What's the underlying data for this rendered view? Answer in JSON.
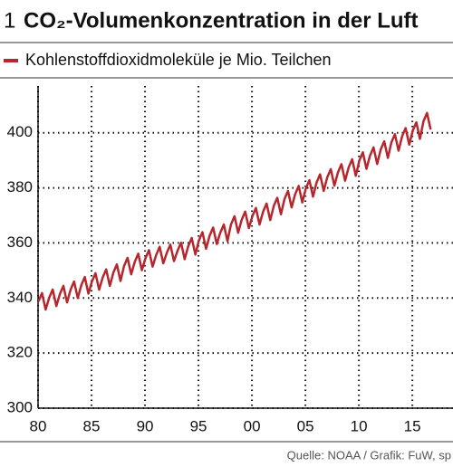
{
  "chart_data": {
    "type": "line",
    "number": "1",
    "title": "CO₂-Volumenkonzentration in der Luft",
    "source": "Quelle: NOAA / Grafik: FuW, sp",
    "x": [
      1980.04,
      1980.37,
      1980.71,
      1981.04,
      1981.37,
      1981.71,
      1982.04,
      1982.37,
      1982.71,
      1983.04,
      1983.37,
      1983.71,
      1984.04,
      1984.37,
      1984.71,
      1985.04,
      1985.37,
      1985.71,
      1986.04,
      1986.37,
      1986.71,
      1987.04,
      1987.37,
      1987.71,
      1988.04,
      1988.37,
      1988.71,
      1989.04,
      1989.37,
      1989.71,
      1990.04,
      1990.37,
      1990.71,
      1991.04,
      1991.37,
      1991.71,
      1992.04,
      1992.37,
      1992.71,
      1993.04,
      1993.37,
      1993.71,
      1994.04,
      1994.37,
      1994.71,
      1995.04,
      1995.37,
      1995.71,
      1996.04,
      1996.37,
      1996.71,
      1997.04,
      1997.37,
      1997.71,
      1998.04,
      1998.37,
      1998.71,
      1999.04,
      1999.37,
      1999.71,
      2000.04,
      2000.37,
      2000.71,
      2001.04,
      2001.37,
      2001.71,
      2002.04,
      2002.37,
      2002.71,
      2003.04,
      2003.37,
      2003.71,
      2004.04,
      2004.37,
      2004.71,
      2005.04,
      2005.37,
      2005.71,
      2006.04,
      2006.37,
      2006.71,
      2007.04,
      2007.37,
      2007.71,
      2008.04,
      2008.37,
      2008.71,
      2009.04,
      2009.37,
      2009.71,
      2010.04,
      2010.37,
      2010.71,
      2011.04,
      2011.37,
      2011.71,
      2012.04,
      2012.37,
      2012.71,
      2013.04,
      2013.37,
      2013.71,
      2014.04,
      2014.37,
      2014.71,
      2015.04,
      2015.37,
      2015.71,
      2016.04,
      2016.37,
      2016.71
    ],
    "series": [
      {
        "name": "Kohlenstoffdioxidmoleküle je Mio. Teilchen",
        "color": "#b5272d",
        "values": [
          338.8,
          341.8,
          335.8,
          340.1,
          343.1,
          337.1,
          341.4,
          344.4,
          338.4,
          343.0,
          346.0,
          340.0,
          344.6,
          347.6,
          341.6,
          346.0,
          349.0,
          343.0,
          347.4,
          350.4,
          344.4,
          349.2,
          352.2,
          346.2,
          351.6,
          354.6,
          348.6,
          353.1,
          356.1,
          350.1,
          354.4,
          357.4,
          351.4,
          355.6,
          358.6,
          352.6,
          356.4,
          359.4,
          353.4,
          357.1,
          360.1,
          354.1,
          358.8,
          361.8,
          355.8,
          360.9,
          363.9,
          357.9,
          362.6,
          365.6,
          359.6,
          363.7,
          366.7,
          360.7,
          366.7,
          369.7,
          363.7,
          368.4,
          371.4,
          365.4,
          369.7,
          372.7,
          366.7,
          371.3,
          374.3,
          368.3,
          373.4,
          376.4,
          370.4,
          375.9,
          378.9,
          372.9,
          377.7,
          380.7,
          374.7,
          379.8,
          382.8,
          376.8,
          381.9,
          384.9,
          378.9,
          383.8,
          386.8,
          380.8,
          385.6,
          388.6,
          382.6,
          387.4,
          390.4,
          384.4,
          389.9,
          392.9,
          386.9,
          391.7,
          394.7,
          388.7,
          393.9,
          396.9,
          390.9,
          396.5,
          399.5,
          393.5,
          398.7,
          401.7,
          395.7,
          400.8,
          403.8,
          397.8,
          404.2,
          407.2,
          401.2
        ]
      }
    ],
    "xlim": [
      1980,
      2018.8
    ],
    "xticks": [
      {
        "value": 1980,
        "label": "80"
      },
      {
        "value": 1985,
        "label": "85"
      },
      {
        "value": 1990,
        "label": "90"
      },
      {
        "value": 1995,
        "label": "95"
      },
      {
        "value": 2000,
        "label": "00"
      },
      {
        "value": 2005,
        "label": "05"
      },
      {
        "value": 2010,
        "label": "10"
      },
      {
        "value": 2015,
        "label": "15"
      }
    ],
    "ylim": [
      300,
      417
    ],
    "yticks": [
      300,
      320,
      340,
      360,
      380,
      400
    ],
    "grid": true
  }
}
